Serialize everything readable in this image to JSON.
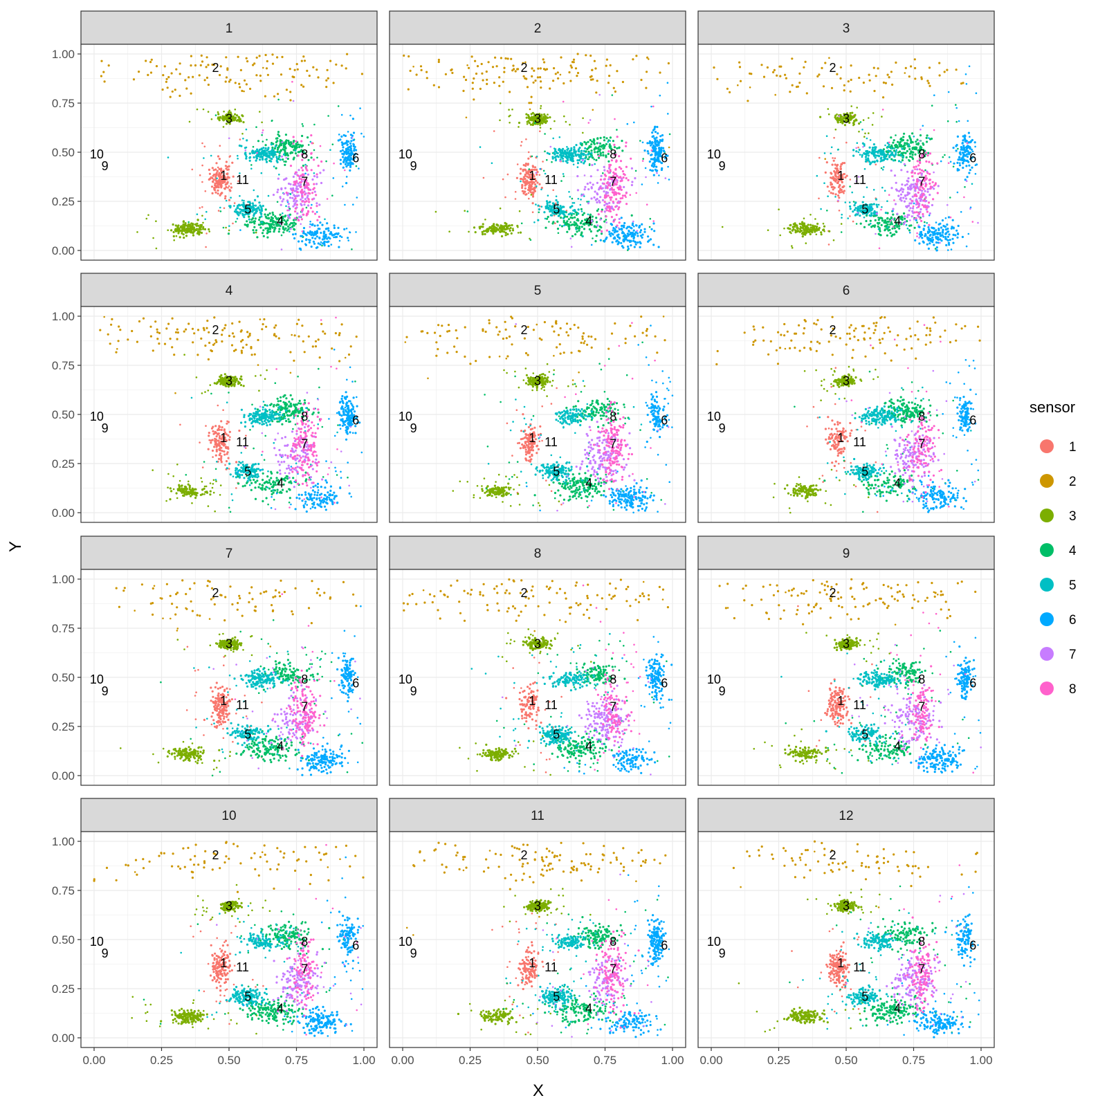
{
  "chart_data": {
    "type": "scatter",
    "facet_labels": [
      "1",
      "2",
      "3",
      "4",
      "5",
      "6",
      "7",
      "8",
      "9",
      "10",
      "11",
      "12"
    ],
    "xlabel": "X",
    "ylabel": "Y",
    "xlim": [
      0,
      1
    ],
    "ylim": [
      0,
      1
    ],
    "x_ticks": [
      0,
      0.25,
      0.5,
      0.75,
      1
    ],
    "x_tick_labels": [
      "0.00",
      "0.25",
      "0.50",
      "0.75",
      "1.00"
    ],
    "y_ticks": [
      0,
      0.25,
      0.5,
      0.75,
      1
    ],
    "y_tick_labels": [
      "0.00",
      "0.25",
      "0.50",
      "0.75",
      "1.00"
    ],
    "grid": true,
    "legend": {
      "title": "sensor",
      "position": "right",
      "entries": [
        {
          "label": "1",
          "color": "#F8766D"
        },
        {
          "label": "2",
          "color": "#CD9600"
        },
        {
          "label": "3",
          "color": "#7CAE00"
        },
        {
          "label": "4",
          "color": "#00BE67"
        },
        {
          "label": "5",
          "color": "#00BFC4"
        },
        {
          "label": "6",
          "color": "#00A9FF"
        },
        {
          "label": "7",
          "color": "#C77CFF"
        },
        {
          "label": "8",
          "color": "#FF61CC"
        }
      ]
    },
    "location_labels": [
      {
        "label": "1",
        "x": 0.48,
        "y": 0.38
      },
      {
        "label": "2",
        "x": 0.45,
        "y": 0.93
      },
      {
        "label": "3",
        "x": 0.5,
        "y": 0.67
      },
      {
        "label": "4",
        "x": 0.69,
        "y": 0.15
      },
      {
        "label": "5",
        "x": 0.57,
        "y": 0.21
      },
      {
        "label": "6",
        "x": 0.97,
        "y": 0.47
      },
      {
        "label": "7",
        "x": 0.78,
        "y": 0.35
      },
      {
        "label": "8",
        "x": 0.78,
        "y": 0.49
      },
      {
        "label": "9",
        "x": 0.04,
        "y": 0.43
      },
      {
        "label": "10",
        "x": 0.01,
        "y": 0.49
      },
      {
        "label": "11",
        "x": 0.55,
        "y": 0.36
      }
    ],
    "clusters": [
      {
        "sensor": "1",
        "cx": 0.47,
        "cy": 0.36,
        "sx": 0.018,
        "sy": 0.045
      },
      {
        "sensor": "2",
        "cx": 0.5,
        "cy": 0.91,
        "sx": 0.28,
        "sy": 0.06
      },
      {
        "sensor": "3",
        "cx": 0.35,
        "cy": 0.11,
        "sx": 0.03,
        "sy": 0.015
      },
      {
        "sensor": "3",
        "cx": 0.5,
        "cy": 0.67,
        "sx": 0.02,
        "sy": 0.012
      },
      {
        "sensor": "4",
        "cx": 0.72,
        "cy": 0.52,
        "sx": 0.04,
        "sy": 0.03
      },
      {
        "sensor": "4",
        "cx": 0.66,
        "cy": 0.14,
        "sx": 0.05,
        "sy": 0.03
      },
      {
        "sensor": "5",
        "cx": 0.62,
        "cy": 0.49,
        "sx": 0.035,
        "sy": 0.02
      },
      {
        "sensor": "5",
        "cx": 0.57,
        "cy": 0.21,
        "sx": 0.03,
        "sy": 0.02
      },
      {
        "sensor": "6",
        "cx": 0.84,
        "cy": 0.08,
        "sx": 0.04,
        "sy": 0.03
      },
      {
        "sensor": "6",
        "cx": 0.94,
        "cy": 0.5,
        "sx": 0.015,
        "sy": 0.05
      },
      {
        "sensor": "7",
        "cx": 0.75,
        "cy": 0.29,
        "sx": 0.04,
        "sy": 0.06
      },
      {
        "sensor": "8",
        "cx": 0.78,
        "cy": 0.33,
        "sx": 0.025,
        "sy": 0.09
      }
    ]
  }
}
